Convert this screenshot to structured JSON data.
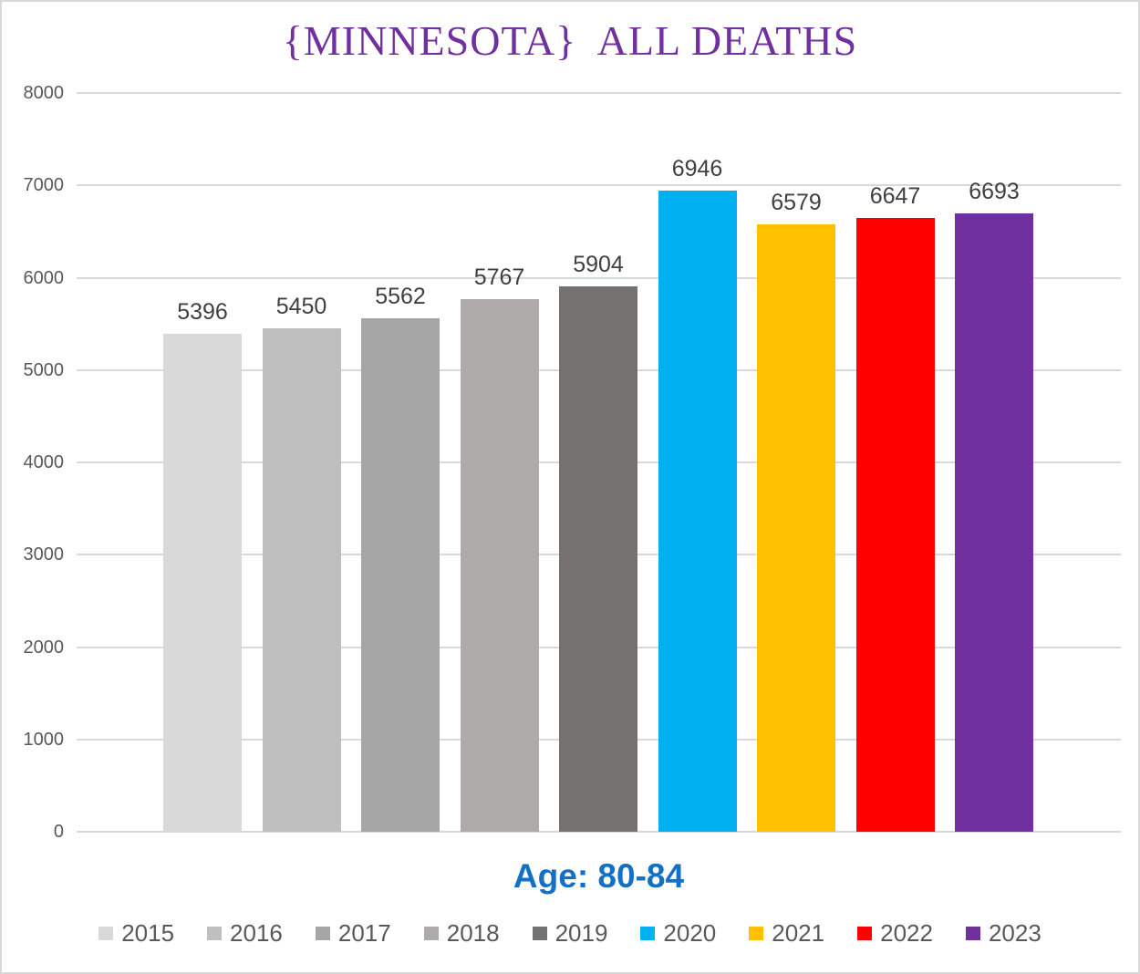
{
  "chart_data": {
    "type": "bar",
    "title": "{MINNESOTA}  ALL DEATHS",
    "subtitle": "Age: 80-84",
    "categories": [
      "2015",
      "2016",
      "2017",
      "2018",
      "2019",
      "2020",
      "2021",
      "2022",
      "2023"
    ],
    "values": [
      5396,
      5450,
      5562,
      5767,
      5904,
      6946,
      6579,
      6647,
      6693
    ],
    "bar_colors": [
      "#D9D9D9",
      "#BFBFBF",
      "#A6A6A6",
      "#AEAAAA",
      "#757171",
      "#00B0F0",
      "#FFC000",
      "#FF0000",
      "#7030A0"
    ],
    "data_labels": [
      "5396",
      "5450",
      "5562",
      "5767",
      "5904",
      "6946",
      "6579",
      "6647",
      "6693"
    ],
    "xlabel": "",
    "ylabel": "",
    "ylim": [
      0,
      8000
    ],
    "ytick_step": 1000,
    "ytick_labels": [
      "0",
      "1000",
      "2000",
      "3000",
      "4000",
      "5000",
      "6000",
      "7000",
      "8000"
    ],
    "grid": true,
    "legend_position": "bottom",
    "title_color": "#7030A0",
    "subtitle_color": "#1470C4",
    "gridline_color": "#D9D9D9"
  }
}
